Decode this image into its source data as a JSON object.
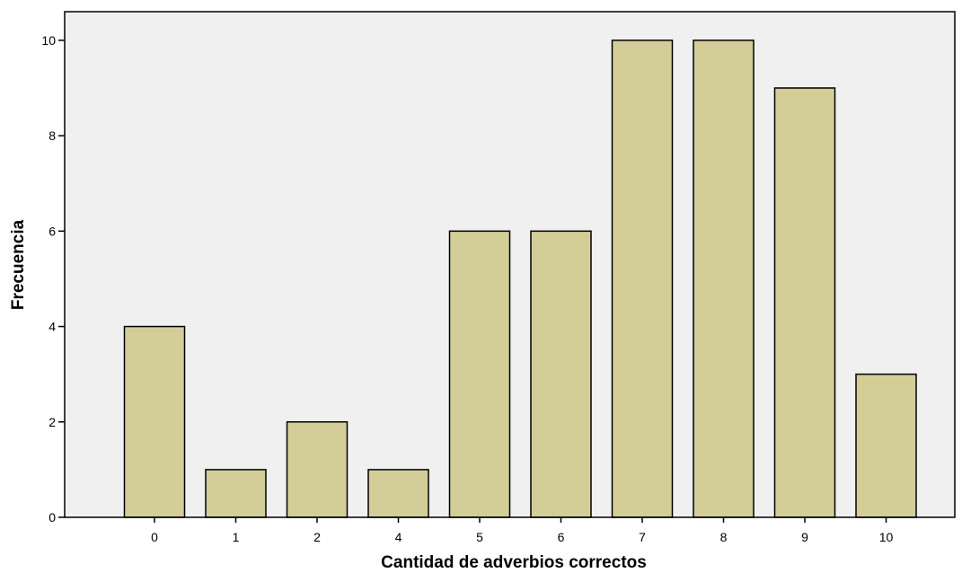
{
  "chart_data": {
    "type": "bar",
    "categories": [
      "0",
      "1",
      "2",
      "4",
      "5",
      "6",
      "7",
      "8",
      "9",
      "10"
    ],
    "values": [
      4,
      1,
      2,
      1,
      6,
      6,
      10,
      10,
      9,
      3
    ],
    "xlabel": "Cantidad de adverbios correctos",
    "ylabel": "Frecuencia",
    "ylim": [
      0,
      10.6
    ],
    "yticks": [
      0,
      2,
      4,
      6,
      8,
      10
    ],
    "grid": false,
    "bar_color": "#d3cd98",
    "plot_background": "#f0f0f0"
  }
}
